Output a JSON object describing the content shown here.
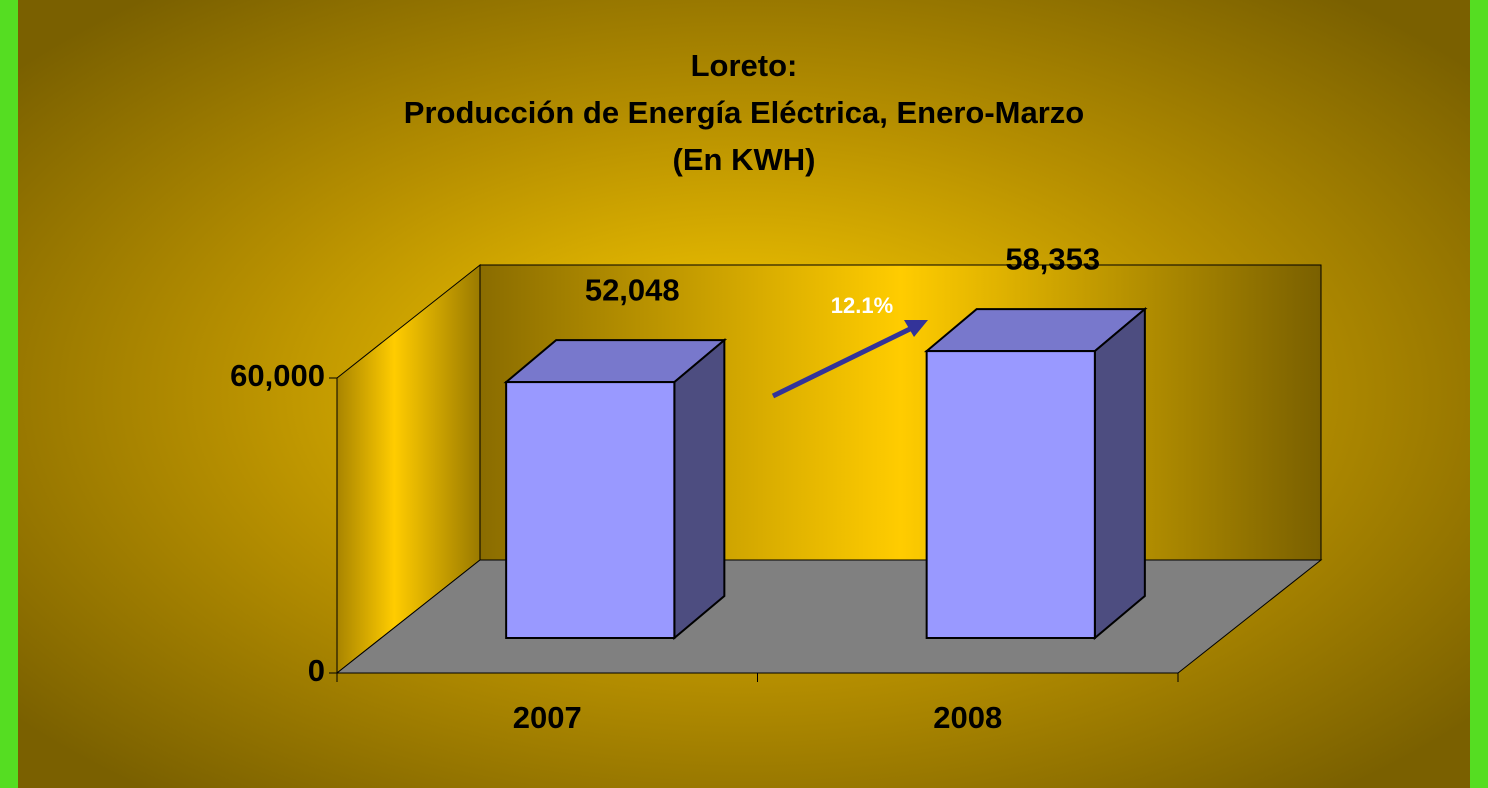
{
  "chart_data": {
    "type": "bar",
    "title": [
      "Loreto:",
      "Producción de Energía Eléctrica, Enero-Marzo",
      "(En KWH)"
    ],
    "categories": [
      "2007",
      "2008"
    ],
    "values": [
      52048,
      58353
    ],
    "value_labels": [
      "52,048",
      "58,353"
    ],
    "color": "#9999ff",
    "ylim": [
      0,
      60000
    ],
    "yticks": [
      0,
      {
        "value": 60000,
        "label": "60,000"
      }
    ],
    "annotation": "12.1%"
  }
}
